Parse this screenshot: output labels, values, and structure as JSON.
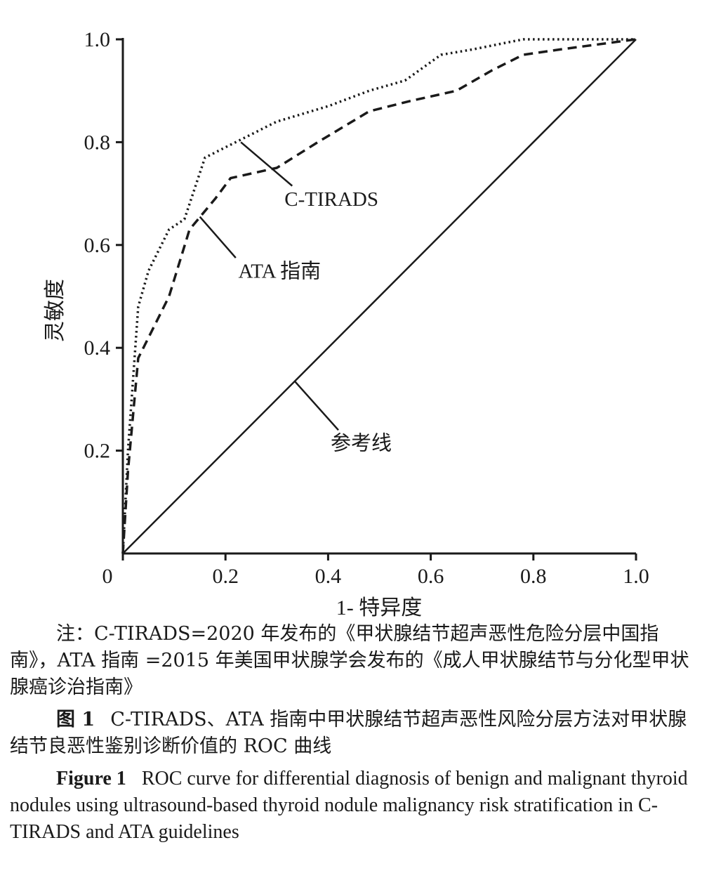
{
  "chart_data": {
    "type": "line",
    "xlabel": "1- 特异度",
    "ylabel": "灵敏度",
    "xlim": [
      0,
      1
    ],
    "ylim": [
      0,
      1
    ],
    "x_ticks": [
      "0",
      "0.2",
      "0.4",
      "0.6",
      "0.8",
      "1.0"
    ],
    "y_ticks": [
      "0.2",
      "0.4",
      "0.6",
      "0.8",
      "1.0"
    ],
    "grid": false,
    "series": [
      {
        "name": "C-TIRADS",
        "style": "dotted",
        "x": [
          0,
          0.01,
          0.03,
          0.05,
          0.09,
          0.12,
          0.16,
          0.22,
          0.3,
          0.4,
          0.48,
          0.55,
          0.62,
          0.68,
          0.78,
          1.0
        ],
        "y": [
          0,
          0.2,
          0.48,
          0.55,
          0.63,
          0.65,
          0.77,
          0.8,
          0.84,
          0.87,
          0.9,
          0.92,
          0.97,
          0.98,
          1.0,
          1.0
        ]
      },
      {
        "name": "ATA 指南",
        "style": "dashed",
        "x": [
          0,
          0.01,
          0.03,
          0.05,
          0.09,
          0.13,
          0.18,
          0.21,
          0.3,
          0.38,
          0.48,
          0.56,
          0.65,
          0.72,
          0.78,
          0.85,
          1.0
        ],
        "y": [
          0,
          0.16,
          0.38,
          0.42,
          0.5,
          0.63,
          0.69,
          0.73,
          0.75,
          0.8,
          0.86,
          0.88,
          0.9,
          0.94,
          0.97,
          0.98,
          1.0
        ]
      },
      {
        "name": "参考线",
        "style": "solid",
        "x": [
          0,
          1
        ],
        "y": [
          0,
          1
        ]
      }
    ],
    "annotations": [
      {
        "text": "C-TIRADS",
        "target_series": 0
      },
      {
        "text": "ATA 指南",
        "target_series": 1
      },
      {
        "text": "参考线",
        "target_series": 2
      }
    ]
  },
  "caption": {
    "note": "注：C-TIRADS=2020 年发布的《甲状腺结节超声恶性危险分层中国指南》，ATA 指南 =2015 年美国甲状腺学会发布的《成人甲状腺结节与分化型甲状腺癌诊治指南》",
    "fig_cn_label": "图 1",
    "fig_cn_text": "C-TIRADS、ATA 指南中甲状腺结节超声恶性风险分层方法对甲状腺结节良恶性鉴别诊断价值的 ROC 曲线",
    "fig_en_label": "Figure 1",
    "fig_en_text": "ROC curve for differential diagnosis of benign and malignant thyroid nodules using ultrasound-based thyroid nodule malignancy risk stratification in C-TIRADS and ATA guidelines"
  }
}
